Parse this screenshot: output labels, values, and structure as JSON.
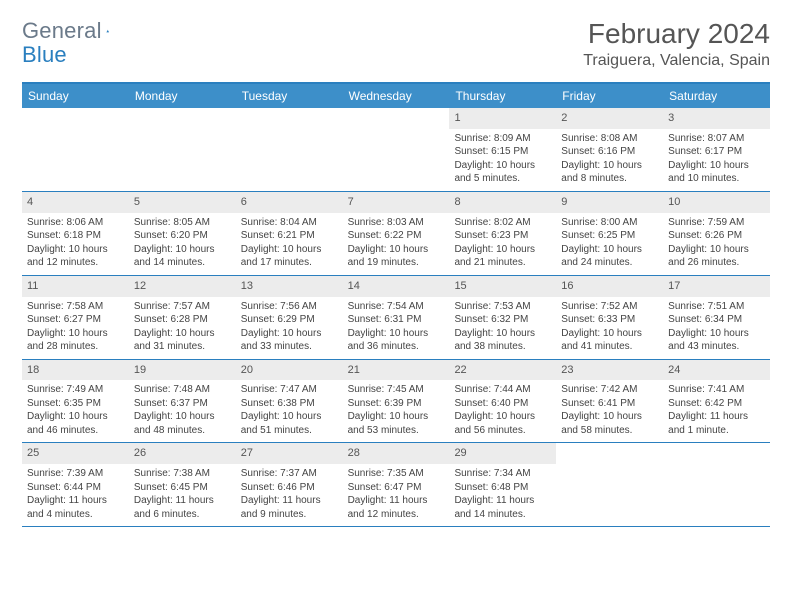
{
  "brand": {
    "text1": "General",
    "text2": "Blue"
  },
  "title": "February 2024",
  "location": "Traiguera, Valencia, Spain",
  "colors": {
    "header_bg": "#3d8fc9",
    "border": "#2a7fbf",
    "daynum_bg": "#ececec",
    "text": "#444444"
  },
  "day_headers": [
    "Sunday",
    "Monday",
    "Tuesday",
    "Wednesday",
    "Thursday",
    "Friday",
    "Saturday"
  ],
  "weeks": [
    [
      {
        "empty": true
      },
      {
        "empty": true
      },
      {
        "empty": true
      },
      {
        "empty": true
      },
      {
        "day": "1",
        "sunrise": "Sunrise: 8:09 AM",
        "sunset": "Sunset: 6:15 PM",
        "daylight1": "Daylight: 10 hours",
        "daylight2": "and 5 minutes."
      },
      {
        "day": "2",
        "sunrise": "Sunrise: 8:08 AM",
        "sunset": "Sunset: 6:16 PM",
        "daylight1": "Daylight: 10 hours",
        "daylight2": "and 8 minutes."
      },
      {
        "day": "3",
        "sunrise": "Sunrise: 8:07 AM",
        "sunset": "Sunset: 6:17 PM",
        "daylight1": "Daylight: 10 hours",
        "daylight2": "and 10 minutes."
      }
    ],
    [
      {
        "day": "4",
        "sunrise": "Sunrise: 8:06 AM",
        "sunset": "Sunset: 6:18 PM",
        "daylight1": "Daylight: 10 hours",
        "daylight2": "and 12 minutes."
      },
      {
        "day": "5",
        "sunrise": "Sunrise: 8:05 AM",
        "sunset": "Sunset: 6:20 PM",
        "daylight1": "Daylight: 10 hours",
        "daylight2": "and 14 minutes."
      },
      {
        "day": "6",
        "sunrise": "Sunrise: 8:04 AM",
        "sunset": "Sunset: 6:21 PM",
        "daylight1": "Daylight: 10 hours",
        "daylight2": "and 17 minutes."
      },
      {
        "day": "7",
        "sunrise": "Sunrise: 8:03 AM",
        "sunset": "Sunset: 6:22 PM",
        "daylight1": "Daylight: 10 hours",
        "daylight2": "and 19 minutes."
      },
      {
        "day": "8",
        "sunrise": "Sunrise: 8:02 AM",
        "sunset": "Sunset: 6:23 PM",
        "daylight1": "Daylight: 10 hours",
        "daylight2": "and 21 minutes."
      },
      {
        "day": "9",
        "sunrise": "Sunrise: 8:00 AM",
        "sunset": "Sunset: 6:25 PM",
        "daylight1": "Daylight: 10 hours",
        "daylight2": "and 24 minutes."
      },
      {
        "day": "10",
        "sunrise": "Sunrise: 7:59 AM",
        "sunset": "Sunset: 6:26 PM",
        "daylight1": "Daylight: 10 hours",
        "daylight2": "and 26 minutes."
      }
    ],
    [
      {
        "day": "11",
        "sunrise": "Sunrise: 7:58 AM",
        "sunset": "Sunset: 6:27 PM",
        "daylight1": "Daylight: 10 hours",
        "daylight2": "and 28 minutes."
      },
      {
        "day": "12",
        "sunrise": "Sunrise: 7:57 AM",
        "sunset": "Sunset: 6:28 PM",
        "daylight1": "Daylight: 10 hours",
        "daylight2": "and 31 minutes."
      },
      {
        "day": "13",
        "sunrise": "Sunrise: 7:56 AM",
        "sunset": "Sunset: 6:29 PM",
        "daylight1": "Daylight: 10 hours",
        "daylight2": "and 33 minutes."
      },
      {
        "day": "14",
        "sunrise": "Sunrise: 7:54 AM",
        "sunset": "Sunset: 6:31 PM",
        "daylight1": "Daylight: 10 hours",
        "daylight2": "and 36 minutes."
      },
      {
        "day": "15",
        "sunrise": "Sunrise: 7:53 AM",
        "sunset": "Sunset: 6:32 PM",
        "daylight1": "Daylight: 10 hours",
        "daylight2": "and 38 minutes."
      },
      {
        "day": "16",
        "sunrise": "Sunrise: 7:52 AM",
        "sunset": "Sunset: 6:33 PM",
        "daylight1": "Daylight: 10 hours",
        "daylight2": "and 41 minutes."
      },
      {
        "day": "17",
        "sunrise": "Sunrise: 7:51 AM",
        "sunset": "Sunset: 6:34 PM",
        "daylight1": "Daylight: 10 hours",
        "daylight2": "and 43 minutes."
      }
    ],
    [
      {
        "day": "18",
        "sunrise": "Sunrise: 7:49 AM",
        "sunset": "Sunset: 6:35 PM",
        "daylight1": "Daylight: 10 hours",
        "daylight2": "and 46 minutes."
      },
      {
        "day": "19",
        "sunrise": "Sunrise: 7:48 AM",
        "sunset": "Sunset: 6:37 PM",
        "daylight1": "Daylight: 10 hours",
        "daylight2": "and 48 minutes."
      },
      {
        "day": "20",
        "sunrise": "Sunrise: 7:47 AM",
        "sunset": "Sunset: 6:38 PM",
        "daylight1": "Daylight: 10 hours",
        "daylight2": "and 51 minutes."
      },
      {
        "day": "21",
        "sunrise": "Sunrise: 7:45 AM",
        "sunset": "Sunset: 6:39 PM",
        "daylight1": "Daylight: 10 hours",
        "daylight2": "and 53 minutes."
      },
      {
        "day": "22",
        "sunrise": "Sunrise: 7:44 AM",
        "sunset": "Sunset: 6:40 PM",
        "daylight1": "Daylight: 10 hours",
        "daylight2": "and 56 minutes."
      },
      {
        "day": "23",
        "sunrise": "Sunrise: 7:42 AM",
        "sunset": "Sunset: 6:41 PM",
        "daylight1": "Daylight: 10 hours",
        "daylight2": "and 58 minutes."
      },
      {
        "day": "24",
        "sunrise": "Sunrise: 7:41 AM",
        "sunset": "Sunset: 6:42 PM",
        "daylight1": "Daylight: 11 hours",
        "daylight2": "and 1 minute."
      }
    ],
    [
      {
        "day": "25",
        "sunrise": "Sunrise: 7:39 AM",
        "sunset": "Sunset: 6:44 PM",
        "daylight1": "Daylight: 11 hours",
        "daylight2": "and 4 minutes."
      },
      {
        "day": "26",
        "sunrise": "Sunrise: 7:38 AM",
        "sunset": "Sunset: 6:45 PM",
        "daylight1": "Daylight: 11 hours",
        "daylight2": "and 6 minutes."
      },
      {
        "day": "27",
        "sunrise": "Sunrise: 7:37 AM",
        "sunset": "Sunset: 6:46 PM",
        "daylight1": "Daylight: 11 hours",
        "daylight2": "and 9 minutes."
      },
      {
        "day": "28",
        "sunrise": "Sunrise: 7:35 AM",
        "sunset": "Sunset: 6:47 PM",
        "daylight1": "Daylight: 11 hours",
        "daylight2": "and 12 minutes."
      },
      {
        "day": "29",
        "sunrise": "Sunrise: 7:34 AM",
        "sunset": "Sunset: 6:48 PM",
        "daylight1": "Daylight: 11 hours",
        "daylight2": "and 14 minutes."
      },
      {
        "empty": true
      },
      {
        "empty": true
      }
    ]
  ]
}
